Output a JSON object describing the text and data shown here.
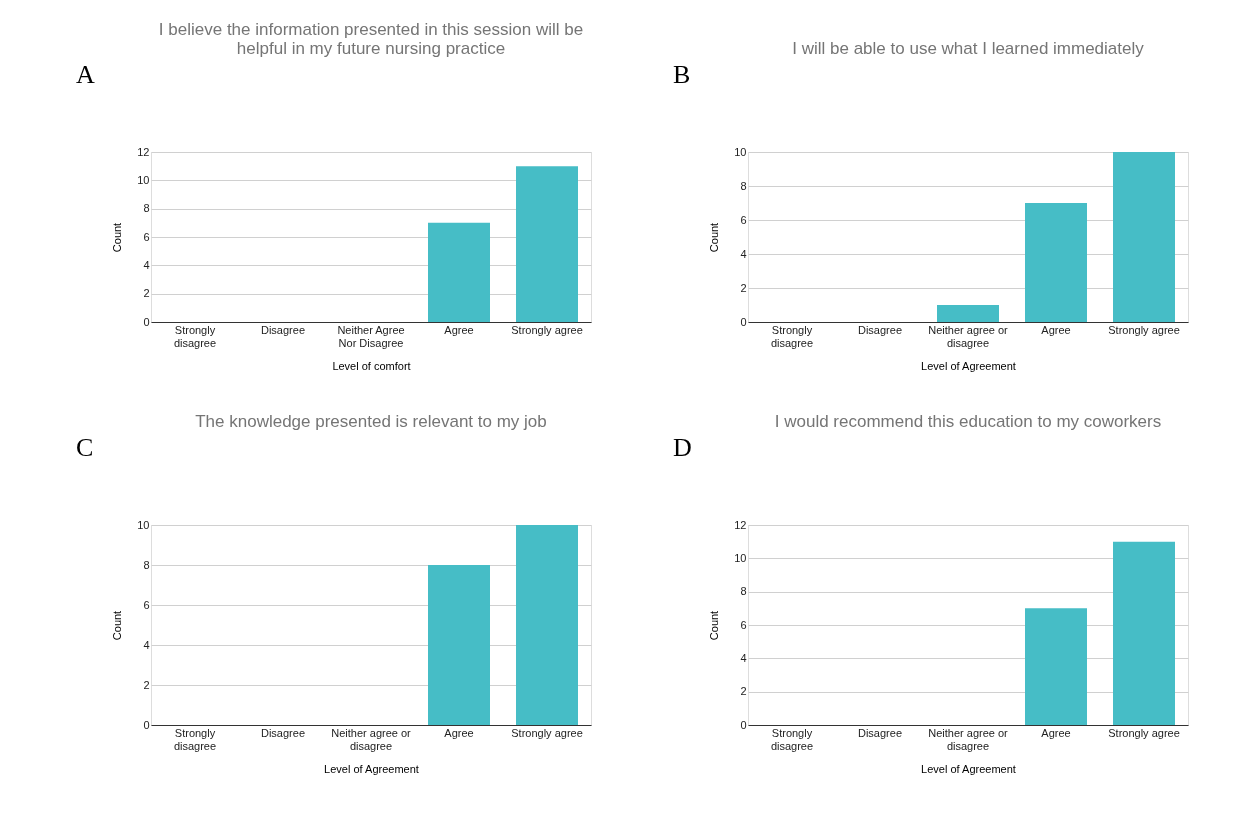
{
  "chart_data": [
    {
      "type": "bar",
      "annotations": [
        "A"
      ],
      "title": "I believe the information presented in this session will be helpful in my future nursing practice",
      "xlabel": "Level of comfort",
      "ylabel": "Count",
      "categories": [
        "Strongly disagree",
        "Disagree",
        "Neither Agree Nor Disagree",
        "Agree",
        "Strongly agree"
      ],
      "values": [
        0,
        0,
        0,
        7,
        11
      ],
      "color": "#46bdc6",
      "ylim": [
        0,
        12
      ],
      "yticks": [
        0,
        2,
        4,
        6,
        8,
        10,
        12
      ],
      "grid": "y"
    },
    {
      "type": "bar",
      "annotations": [
        "B"
      ],
      "title": "I will be able to use what I learned immediately",
      "xlabel": "Level of Agreement",
      "ylabel": "Count",
      "categories": [
        "Strongly disagree",
        "Disagree",
        "Neither agree or disagree",
        "Agree",
        "Strongly agree"
      ],
      "values": [
        0,
        0,
        1,
        7,
        10
      ],
      "color": "#46bdc6",
      "ylim": [
        0,
        10
      ],
      "yticks": [
        0,
        2,
        4,
        6,
        8,
        10
      ],
      "grid": "y"
    },
    {
      "type": "bar",
      "annotations": [
        "C"
      ],
      "title": "The knowledge presented is relevant to my job",
      "xlabel": "Level of Agreement",
      "ylabel": "Count",
      "categories": [
        "Strongly disagree",
        "Disagree",
        "Neither agree or disagree",
        "Agree",
        "Strongly agree"
      ],
      "values": [
        0,
        0,
        0,
        8,
        10
      ],
      "color": "#46bdc6",
      "ylim": [
        0,
        10
      ],
      "yticks": [
        0,
        2,
        4,
        6,
        8,
        10
      ],
      "grid": "y"
    },
    {
      "type": "bar",
      "annotations": [
        "D"
      ],
      "title": "I would recommend this education to my coworkers",
      "xlabel": "Level of Agreement",
      "ylabel": "Count",
      "categories": [
        "Strongly disagree",
        "Disagree",
        "Neither agree or disagree",
        "Agree",
        "Strongly agree"
      ],
      "values": [
        0,
        0,
        0,
        7,
        11
      ],
      "color": "#46bdc6",
      "ylim": [
        0,
        12
      ],
      "yticks": [
        0,
        2,
        4,
        6,
        8,
        10,
        12
      ],
      "grid": "y"
    }
  ]
}
